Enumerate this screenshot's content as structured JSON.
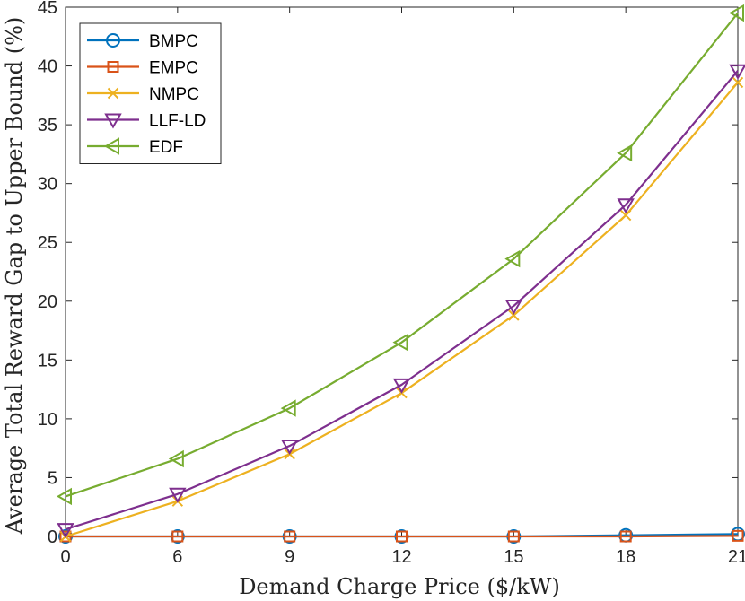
{
  "chart_data": {
    "type": "line",
    "title": "",
    "xlabel": "Demand Charge Price ($/kW)",
    "ylabel": "Average Total Reward Gap to Upper Bound (%)",
    "categories": [
      "0",
      "6",
      "9",
      "12",
      "15",
      "18",
      "21"
    ],
    "ylim": [
      0,
      45
    ],
    "yticks": [
      0,
      5,
      10,
      15,
      20,
      25,
      30,
      35,
      40,
      45
    ],
    "grid": false,
    "legend_position": "top-left",
    "series": [
      {
        "name": "BMPC",
        "color": "#0072BD",
        "marker": "circle",
        "values": [
          0.0,
          0.0,
          0.0,
          0.0,
          0.0,
          0.1,
          0.2
        ]
      },
      {
        "name": "EMPC",
        "color": "#D95319",
        "marker": "square",
        "values": [
          0.0,
          0.0,
          0.0,
          0.0,
          0.0,
          0.0,
          0.05
        ]
      },
      {
        "name": "NMPC",
        "color": "#EDB120",
        "marker": "x",
        "values": [
          0.0,
          3.0,
          7.0,
          12.2,
          18.8,
          27.3,
          38.6
        ]
      },
      {
        "name": "LLF-LD",
        "color": "#7E2F8E",
        "marker": "triangle-down",
        "values": [
          0.6,
          3.6,
          7.7,
          12.9,
          19.6,
          28.2,
          39.6
        ]
      },
      {
        "name": "EDF",
        "color": "#77AC30",
        "marker": "triangle-left",
        "values": [
          3.4,
          6.6,
          10.9,
          16.5,
          23.6,
          32.6,
          44.5
        ]
      }
    ]
  }
}
